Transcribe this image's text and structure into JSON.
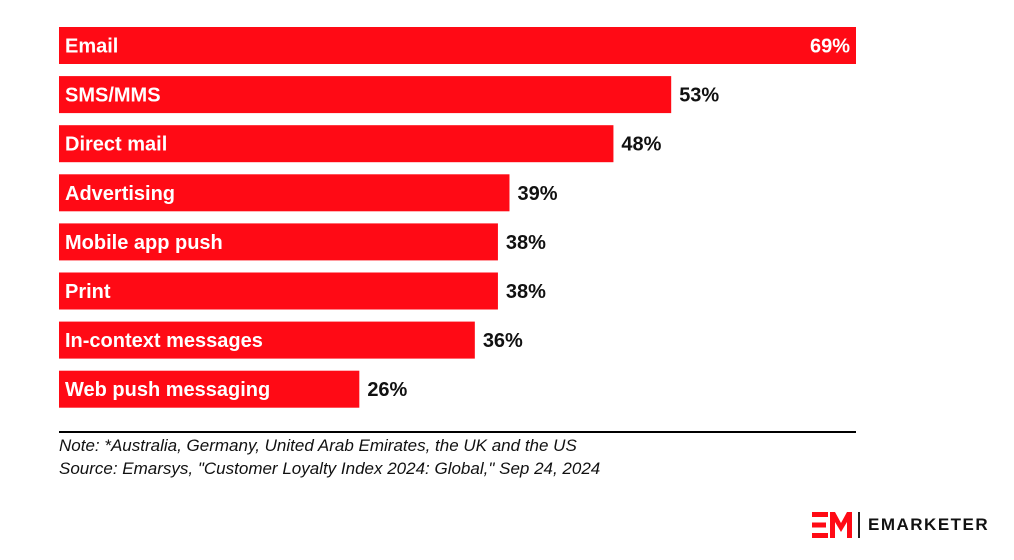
{
  "chart_data": {
    "type": "bar",
    "orientation": "horizontal",
    "categories": [
      "Email",
      "SMS/MMS",
      "Direct mail",
      "Advertising",
      "Mobile app push",
      "Print",
      "In-context messages",
      "Web push messaging"
    ],
    "values": [
      69,
      53,
      48,
      39,
      38,
      38,
      36,
      26
    ],
    "value_labels": [
      "69%",
      "53%",
      "48%",
      "39%",
      "38%",
      "38%",
      "36%",
      "26%"
    ],
    "xlim": [
      0,
      69
    ],
    "grid": false,
    "legend": "none",
    "bar_color": "#ff0a15",
    "title": "",
    "xlabel": "",
    "ylabel": ""
  },
  "footer": {
    "note": "Note: *Australia, Germany, United Arab Emirates, the UK and the US",
    "source": "Source: Emarsys, \"Customer Loyalty Index 2024: Global,\" Sep 24, 2024"
  },
  "brand": {
    "name": "EMARKETER",
    "logo_icon": "em-logo-icon",
    "color": "#ff0a15"
  }
}
